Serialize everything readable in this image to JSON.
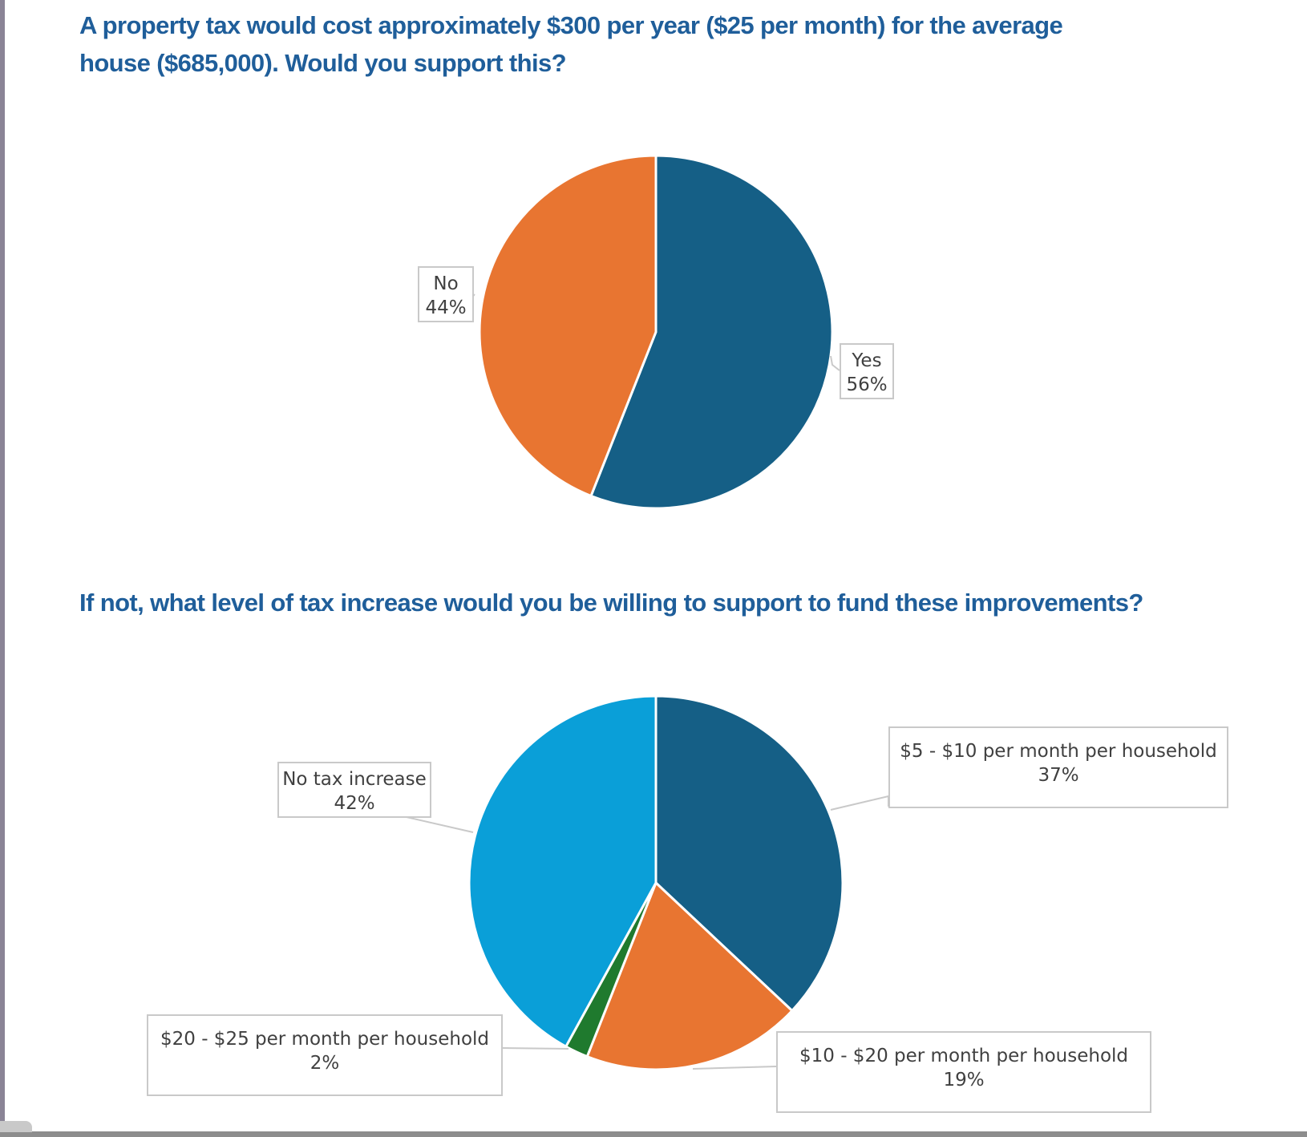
{
  "chart_data": [
    {
      "type": "pie",
      "title": "A property tax would cost approximately $300 per year ($25 per month) for the average house ($685,000). Would you support this?",
      "slices": [
        {
          "label": "Yes",
          "value": 56,
          "value_label": "56%",
          "color": "#155f86"
        },
        {
          "label": "No",
          "value": 44,
          "value_label": "44%",
          "color": "#e87531"
        }
      ]
    },
    {
      "type": "pie",
      "title": "If not, what level of tax increase would you be willing to support to fund these improvements?",
      "slices": [
        {
          "label": "$5 - $10 per month per household",
          "value": 37,
          "value_label": "37%",
          "color": "#155f86"
        },
        {
          "label": "$10 - $20 per month per household",
          "value": 19,
          "value_label": "19%",
          "color": "#e87531"
        },
        {
          "label": "$20 - $25 per month per household",
          "value": 2,
          "value_label": "2%",
          "color": "#1f7a2e"
        },
        {
          "label": "No tax increase",
          "value": 42,
          "value_label": "42%",
          "color": "#0a9fd8"
        }
      ]
    }
  ]
}
